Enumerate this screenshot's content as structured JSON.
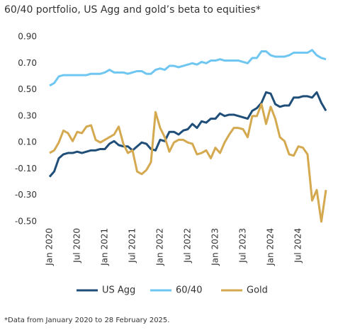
{
  "chart_data": {
    "type": "line",
    "title": "60/40 portfolio, US Agg and gold’s beta to equities*",
    "note": "*Data from January 2020 to 28 February 2025.",
    "categories": [
      "Jan 2020",
      null,
      null,
      null,
      null,
      null,
      "Jul 2020",
      null,
      null,
      null,
      null,
      null,
      "Jan 2021",
      null,
      null,
      null,
      null,
      null,
      "Jul 2021",
      null,
      null,
      null,
      null,
      null,
      "Jan 2022",
      null,
      null,
      null,
      null,
      null,
      "Jul 2022",
      null,
      null,
      null,
      null,
      null,
      "Jan 2023",
      null,
      null,
      null,
      null,
      null,
      "Jul 2023",
      null,
      null,
      null,
      null,
      null,
      "Jan 2024",
      null,
      null,
      null,
      null,
      null,
      "Jul 2024",
      null,
      null,
      null,
      null,
      null,
      null
    ],
    "series": [
      {
        "name": "US Agg",
        "color": "#1f4e79",
        "values": [
          -0.16,
          -0.12,
          -0.02,
          0.01,
          0.02,
          0.02,
          0.03,
          0.02,
          0.03,
          0.04,
          0.04,
          0.05,
          0.05,
          0.09,
          0.11,
          0.08,
          0.07,
          0.07,
          0.04,
          0.07,
          0.1,
          0.09,
          0.05,
          0.04,
          0.12,
          0.11,
          0.18,
          0.18,
          0.16,
          0.19,
          0.2,
          0.24,
          0.21,
          0.26,
          0.25,
          0.28,
          0.28,
          0.32,
          0.3,
          0.31,
          0.31,
          0.3,
          0.29,
          0.28,
          0.34,
          0.36,
          0.4,
          0.48,
          0.47,
          0.39,
          0.37,
          0.38,
          0.38,
          0.44,
          0.44,
          0.45,
          0.45,
          0.44,
          0.48,
          0.4,
          0.34
        ]
      },
      {
        "name": "60/40",
        "color": "#6ec6f1",
        "values": [
          0.53,
          0.55,
          0.6,
          0.61,
          0.61,
          0.61,
          0.61,
          0.61,
          0.61,
          0.62,
          0.62,
          0.62,
          0.63,
          0.65,
          0.63,
          0.63,
          0.63,
          0.62,
          0.63,
          0.64,
          0.64,
          0.62,
          0.62,
          0.65,
          0.66,
          0.65,
          0.68,
          0.68,
          0.67,
          0.68,
          0.69,
          0.7,
          0.69,
          0.71,
          0.7,
          0.72,
          0.72,
          0.73,
          0.72,
          0.72,
          0.72,
          0.72,
          0.71,
          0.7,
          0.74,
          0.74,
          0.79,
          0.79,
          0.76,
          0.75,
          0.75,
          0.75,
          0.76,
          0.78,
          0.78,
          0.78,
          0.78,
          0.8,
          0.76,
          0.74,
          0.73
        ]
      },
      {
        "name": "Gold",
        "color": "#d4a94f",
        "values": [
          0.02,
          0.04,
          0.1,
          0.19,
          0.17,
          0.11,
          0.18,
          0.17,
          0.22,
          0.23,
          0.12,
          0.1,
          0.12,
          0.14,
          0.16,
          0.22,
          0.09,
          0.02,
          0.04,
          -0.12,
          -0.14,
          -0.11,
          -0.05,
          0.33,
          0.21,
          0.14,
          0.03,
          0.1,
          0.12,
          0.12,
          0.1,
          0.09,
          0.01,
          0.02,
          0.04,
          -0.02,
          0.06,
          0.02,
          0.1,
          0.16,
          0.21,
          0.21,
          0.2,
          0.14,
          0.3,
          0.3,
          0.39,
          0.24,
          0.37,
          0.28,
          0.14,
          0.11,
          0.01,
          0.0,
          0.07,
          0.06,
          0.01,
          -0.34,
          -0.26,
          -0.5,
          -0.26
        ]
      }
    ],
    "ylim": [
      -0.5,
      0.9
    ],
    "yticks": [
      {
        "value": 0.9,
        "label": "0.90"
      },
      {
        "value": 0.7,
        "label": "0.70"
      },
      {
        "value": 0.5,
        "label": "0.50"
      },
      {
        "value": 0.3,
        "label": "0.30"
      },
      {
        "value": 0.1,
        "label": "0.10"
      },
      {
        "value": -0.1,
        "label": "-0.10"
      },
      {
        "value": -0.3,
        "label": "-0.30"
      },
      {
        "value": -0.5,
        "label": "-0.50"
      }
    ]
  }
}
